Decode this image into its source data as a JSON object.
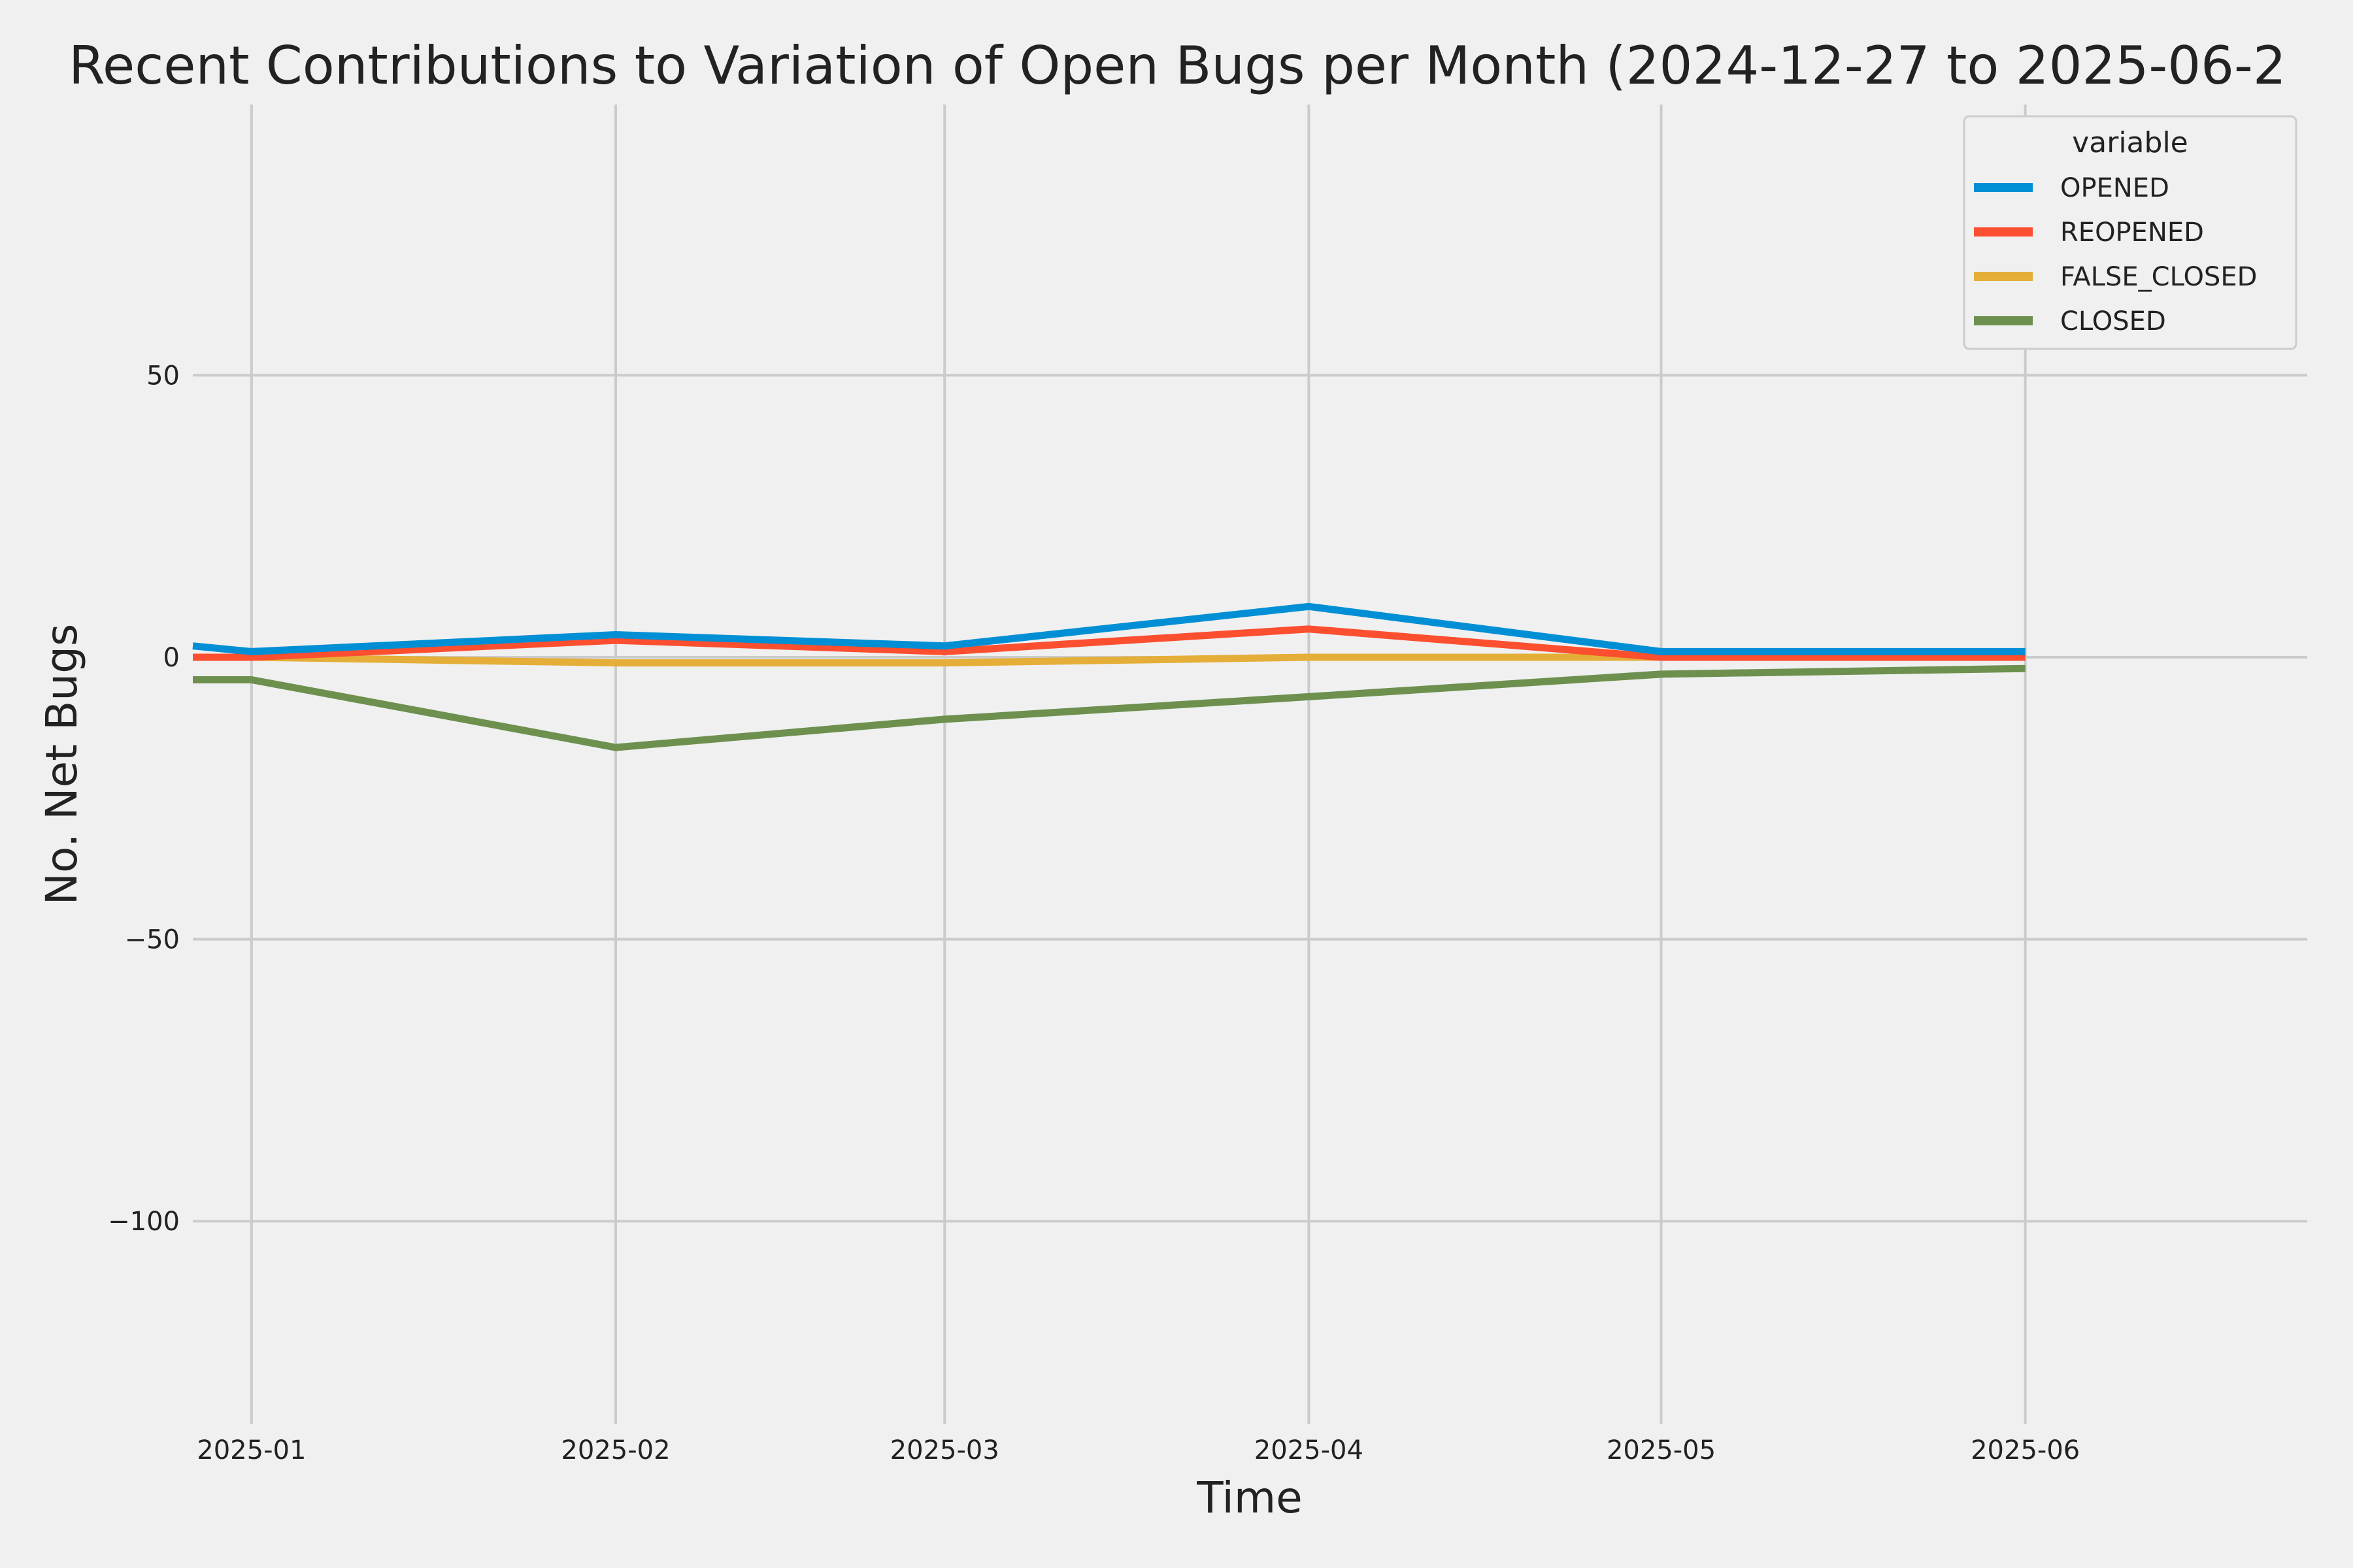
{
  "chart_data": {
    "type": "line",
    "title": "Recent Contributions to Variation of Open Bugs per Month (2024-12-27 to 2025-06-2",
    "xlabel": "Time",
    "ylabel": "No. Net Bugs",
    "x_ticks": [
      "2025-01",
      "2025-02",
      "2025-03",
      "2025-04",
      "2025-05",
      "2025-06"
    ],
    "x": [
      "2024-12-27",
      "2025-01-01",
      "2025-02-01",
      "2025-03-01",
      "2025-04-01",
      "2025-05-01",
      "2025-06-01"
    ],
    "xlim": [
      "2024-12-27",
      "2025-06-25"
    ],
    "y_ticks": [
      50,
      0,
      -50,
      -100
    ],
    "y_tick_labels": [
      "50",
      "0",
      "−50",
      "−100"
    ],
    "ylim": [
      -136,
      98
    ],
    "grid": true,
    "legend": {
      "title": "variable",
      "position": "top-right"
    },
    "series": [
      {
        "name": "OPENED",
        "color": "#008fd5",
        "values": [
          2,
          1,
          4,
          2,
          9,
          1,
          1
        ]
      },
      {
        "name": "REOPENED",
        "color": "#fc4f30",
        "values": [
          0,
          0,
          3,
          1,
          5,
          0,
          0
        ]
      },
      {
        "name": "FALSE_CLOSED",
        "color": "#e5ae38",
        "values": [
          0,
          0,
          -1,
          -1,
          0,
          0,
          0
        ]
      },
      {
        "name": "CLOSED",
        "color": "#6d904f",
        "values": [
          -4,
          -4,
          -16,
          -11,
          -7,
          -3,
          -2
        ]
      }
    ]
  }
}
